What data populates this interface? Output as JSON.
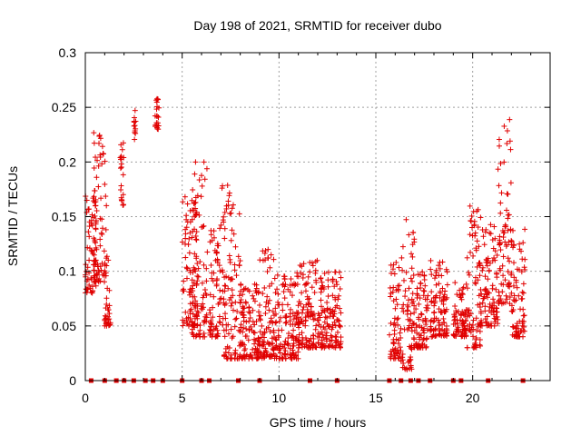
{
  "chart_data": {
    "type": "scatter",
    "title": "Day 198 of 2021, SRMTID for receiver dubo",
    "xlabel": "GPS time / hours",
    "ylabel": "SRMTID / TECUs",
    "xlim": [
      0,
      24
    ],
    "ylim": [
      0,
      0.3
    ],
    "xticks": [
      0,
      5,
      10,
      15,
      20
    ],
    "xtick_labels": [
      "0",
      "5",
      "10",
      "15",
      "20"
    ],
    "yticks": [
      0,
      0.05,
      0.1,
      0.15,
      0.2,
      0.25,
      0.3
    ],
    "ytick_labels": [
      "0",
      "0.05",
      "0.1",
      "0.15",
      "0.2",
      "0.25",
      "0.3"
    ],
    "grid": true,
    "marker": "plus",
    "color": "#e00000",
    "series": [
      {
        "name": "SRMTID",
        "clusters": [
          {
            "x": [
              0.0,
              0.6
            ],
            "y": [
              0.08,
              0.17
            ]
          },
          {
            "x": [
              0.4,
              1.1
            ],
            "y": [
              0.09,
              0.23
            ]
          },
          {
            "x": [
              1.0,
              1.3
            ],
            "y": [
              0.05,
              0.12
            ]
          },
          {
            "x": [
              1.8,
              2.0
            ],
            "y": [
              0.16,
              0.22
            ]
          },
          {
            "x": [
              2.5,
              2.6
            ],
            "y": [
              0.22,
              0.25
            ]
          },
          {
            "x": [
              3.6,
              3.8
            ],
            "y": [
              0.23,
              0.26
            ]
          },
          {
            "x": [
              5.0,
              5.8
            ],
            "y": [
              0.05,
              0.17
            ]
          },
          {
            "x": [
              5.5,
              6.3
            ],
            "y": [
              0.04,
              0.2
            ]
          },
          {
            "x": [
              6.4,
              7.0
            ],
            "y": [
              0.04,
              0.14
            ]
          },
          {
            "x": [
              7.0,
              8.0
            ],
            "y": [
              0.02,
              0.18
            ]
          },
          {
            "x": [
              8.0,
              9.0
            ],
            "y": [
              0.02,
              0.09
            ]
          },
          {
            "x": [
              9.0,
              10.0
            ],
            "y": [
              0.02,
              0.12
            ]
          },
          {
            "x": [
              10.0,
              11.0
            ],
            "y": [
              0.02,
              0.1
            ]
          },
          {
            "x": [
              11.0,
              12.0
            ],
            "y": [
              0.03,
              0.11
            ]
          },
          {
            "x": [
              12.0,
              13.2
            ],
            "y": [
              0.03,
              0.1
            ]
          },
          {
            "x": [
              15.7,
              16.3
            ],
            "y": [
              0.02,
              0.11
            ]
          },
          {
            "x": [
              16.3,
              17.0
            ],
            "y": [
              0.01,
              0.15
            ]
          },
          {
            "x": [
              17.0,
              17.7
            ],
            "y": [
              0.03,
              0.1
            ]
          },
          {
            "x": [
              17.8,
              18.7
            ],
            "y": [
              0.04,
              0.11
            ]
          },
          {
            "x": [
              19.0,
              19.7
            ],
            "y": [
              0.04,
              0.09
            ]
          },
          {
            "x": [
              19.7,
              20.4
            ],
            "y": [
              0.03,
              0.16
            ]
          },
          {
            "x": [
              20.4,
              21.3
            ],
            "y": [
              0.05,
              0.15
            ]
          },
          {
            "x": [
              21.3,
              22.0
            ],
            "y": [
              0.07,
              0.24
            ]
          },
          {
            "x": [
              22.0,
              22.7
            ],
            "y": [
              0.04,
              0.14
            ]
          }
        ],
        "zero_values_at": [
          0.3,
          1.0,
          1.6,
          2.0,
          2.5,
          3.1,
          3.5,
          4.0,
          5.0,
          6.0,
          6.4,
          7.9,
          9.0,
          11.6,
          13.0,
          15.7,
          16.3,
          16.8,
          17.2,
          17.8,
          19.0,
          19.4,
          20.8,
          22.6
        ]
      }
    ]
  }
}
